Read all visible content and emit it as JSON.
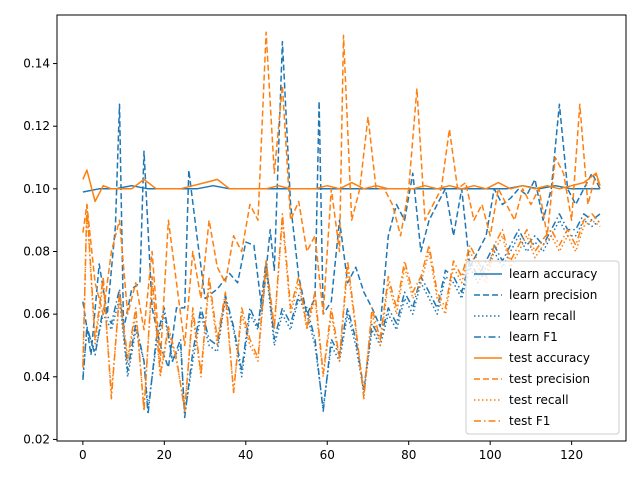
{
  "chart_data": {
    "type": "line",
    "title": "",
    "xlabel": "",
    "ylabel": "",
    "xlim": [
      -6.35,
      133.35
    ],
    "ylim": [
      0.0195,
      0.1555
    ],
    "xticks": [
      0,
      20,
      40,
      60,
      80,
      100,
      120
    ],
    "xtick_labels": [
      "0",
      "20",
      "40",
      "60",
      "80",
      "100",
      "120"
    ],
    "yticks": [
      0.02,
      0.04,
      0.06,
      0.08,
      0.1,
      0.12,
      0.14
    ],
    "ytick_labels": [
      "0.02",
      "0.04",
      "0.06",
      "0.08",
      "0.10",
      "0.12",
      "0.14"
    ],
    "grid": false,
    "legend_position": "lower-right",
    "colors": {
      "learn": "#1f77b4",
      "test": "#ff7f0e"
    },
    "series": [
      {
        "name": "learn accuracy",
        "color": "#1f77b4",
        "dash": "solid",
        "x": [
          0,
          4,
          8,
          12,
          16,
          20,
          24,
          28,
          32,
          36,
          40,
          44,
          48,
          52,
          56,
          60,
          64,
          68,
          72,
          76,
          80,
          84,
          88,
          92,
          96,
          100,
          104,
          108,
          112,
          116,
          120,
          124,
          127
        ],
        "y": [
          0.099,
          0.1,
          0.1,
          0.101,
          0.1,
          0.1,
          0.1,
          0.1,
          0.101,
          0.1,
          0.1,
          0.1,
          0.1,
          0.1,
          0.1,
          0.1,
          0.1,
          0.1,
          0.1,
          0.1,
          0.1,
          0.1,
          0.1,
          0.1,
          0.1,
          0.1,
          0.1,
          0.101,
          0.1,
          0.101,
          0.1,
          0.1,
          0.1
        ]
      },
      {
        "name": "learn precision",
        "color": "#1f77b4",
        "dash": "dashed",
        "x": [
          0,
          2,
          4,
          6,
          8,
          9,
          10,
          12,
          14,
          15,
          17,
          19,
          21,
          23,
          25,
          26,
          28,
          30,
          33,
          36,
          38,
          40,
          42,
          44,
          46,
          47,
          49,
          51,
          53,
          55,
          57,
          58,
          59,
          61,
          63,
          65,
          67,
          69,
          71,
          73,
          75,
          77,
          79,
          81,
          83,
          85,
          87,
          89,
          91,
          93,
          95,
          97,
          99,
          101,
          103,
          105,
          107,
          109,
          111,
          113,
          115,
          117,
          119,
          121,
          123,
          125,
          127
        ],
        "y": [
          0.064,
          0.047,
          0.076,
          0.06,
          0.088,
          0.127,
          0.055,
          0.068,
          0.07,
          0.112,
          0.062,
          0.05,
          0.043,
          0.062,
          0.062,
          0.106,
          0.085,
          0.065,
          0.068,
          0.073,
          0.07,
          0.083,
          0.082,
          0.061,
          0.087,
          0.074,
          0.147,
          0.095,
          0.072,
          0.06,
          0.065,
          0.128,
          0.06,
          0.064,
          0.09,
          0.07,
          0.075,
          0.067,
          0.062,
          0.056,
          0.085,
          0.095,
          0.09,
          0.105,
          0.08,
          0.09,
          0.095,
          0.1,
          0.085,
          0.1,
          0.075,
          0.08,
          0.085,
          0.1,
          0.095,
          0.097,
          0.1,
          0.098,
          0.103,
          0.09,
          0.1,
          0.127,
          0.1,
          0.095,
          0.1,
          0.105,
          0.1
        ]
      },
      {
        "name": "learn recall",
        "color": "#1f77b4",
        "dash": "dotted",
        "x": [
          0,
          1,
          3,
          5,
          7,
          9,
          11,
          13,
          15,
          16,
          18,
          20,
          22,
          24,
          25,
          27,
          29,
          31,
          33,
          35,
          37,
          39,
          41,
          43,
          45,
          47,
          49,
          51,
          53,
          55,
          57,
          59,
          61,
          63,
          65,
          67,
          69,
          71,
          73,
          75,
          77,
          79,
          81,
          83,
          85,
          87,
          89,
          91,
          93,
          95,
          97,
          99,
          101,
          103,
          105,
          107,
          109,
          111,
          113,
          115,
          117,
          119,
          121,
          123,
          125,
          127
        ],
        "y": [
          0.04,
          0.055,
          0.048,
          0.06,
          0.055,
          0.065,
          0.04,
          0.055,
          0.045,
          0.03,
          0.05,
          0.06,
          0.045,
          0.05,
          0.028,
          0.045,
          0.06,
          0.05,
          0.048,
          0.065,
          0.055,
          0.04,
          0.06,
          0.055,
          0.075,
          0.05,
          0.06,
          0.055,
          0.065,
          0.06,
          0.05,
          0.03,
          0.05,
          0.045,
          0.06,
          0.05,
          0.035,
          0.055,
          0.05,
          0.06,
          0.055,
          0.065,
          0.06,
          0.07,
          0.065,
          0.06,
          0.072,
          0.07,
          0.065,
          0.075,
          0.07,
          0.075,
          0.08,
          0.075,
          0.08,
          0.085,
          0.08,
          0.083,
          0.08,
          0.085,
          0.09,
          0.085,
          0.085,
          0.09,
          0.088,
          0.09
        ]
      },
      {
        "name": "learn F1",
        "color": "#1f77b4",
        "dash": "dashdot",
        "x": [
          0,
          1,
          3,
          5,
          7,
          9,
          11,
          13,
          15,
          16,
          18,
          20,
          22,
          24,
          25,
          27,
          29,
          31,
          33,
          35,
          37,
          39,
          41,
          43,
          45,
          47,
          49,
          51,
          53,
          55,
          57,
          59,
          61,
          63,
          65,
          67,
          69,
          71,
          73,
          75,
          77,
          79,
          81,
          83,
          85,
          87,
          89,
          91,
          93,
          95,
          97,
          99,
          101,
          103,
          105,
          107,
          109,
          111,
          113,
          115,
          117,
          119,
          121,
          123,
          125,
          127
        ],
        "y": [
          0.039,
          0.056,
          0.047,
          0.062,
          0.057,
          0.068,
          0.042,
          0.057,
          0.045,
          0.028,
          0.052,
          0.062,
          0.045,
          0.052,
          0.027,
          0.048,
          0.062,
          0.052,
          0.05,
          0.066,
          0.056,
          0.042,
          0.062,
          0.056,
          0.077,
          0.052,
          0.062,
          0.057,
          0.066,
          0.062,
          0.052,
          0.029,
          0.052,
          0.047,
          0.062,
          0.052,
          0.036,
          0.057,
          0.052,
          0.062,
          0.057,
          0.067,
          0.062,
          0.072,
          0.067,
          0.062,
          0.074,
          0.072,
          0.067,
          0.077,
          0.072,
          0.077,
          0.082,
          0.077,
          0.082,
          0.087,
          0.082,
          0.085,
          0.082,
          0.087,
          0.092,
          0.087,
          0.087,
          0.092,
          0.09,
          0.092
        ]
      },
      {
        "name": "test accuracy",
        "color": "#ff7f0e",
        "dash": "solid",
        "x": [
          0,
          1,
          3,
          5,
          7,
          9,
          12,
          15,
          18,
          21,
          24,
          27,
          30,
          33,
          36,
          39,
          42,
          45,
          48,
          51,
          54,
          57,
          60,
          63,
          66,
          69,
          72,
          75,
          78,
          81,
          84,
          87,
          90,
          93,
          96,
          99,
          102,
          105,
          108,
          111,
          114,
          117,
          120,
          123,
          126,
          127
        ],
        "y": [
          0.103,
          0.106,
          0.096,
          0.101,
          0.1,
          0.1,
          0.1,
          0.103,
          0.1,
          0.1,
          0.1,
          0.101,
          0.102,
          0.103,
          0.1,
          0.1,
          0.1,
          0.1,
          0.101,
          0.1,
          0.1,
          0.1,
          0.101,
          0.1,
          0.102,
          0.1,
          0.101,
          0.1,
          0.1,
          0.1,
          0.101,
          0.1,
          0.101,
          0.1,
          0.101,
          0.1,
          0.102,
          0.1,
          0.101,
          0.1,
          0.101,
          0.1,
          0.101,
          0.102,
          0.105,
          0.101
        ]
      },
      {
        "name": "test precision",
        "color": "#ff7f0e",
        "dash": "dashed",
        "x": [
          0,
          1,
          3,
          5,
          7,
          9,
          11,
          13,
          15,
          17,
          19,
          21,
          23,
          25,
          27,
          29,
          31,
          33,
          35,
          37,
          39,
          41,
          43,
          45,
          47,
          49,
          51,
          53,
          55,
          57,
          59,
          61,
          63,
          64,
          66,
          68,
          70,
          72,
          74,
          76,
          78,
          80,
          82,
          84,
          86,
          88,
          90,
          92,
          94,
          96,
          98,
          100,
          102,
          104,
          106,
          108,
          110,
          112,
          114,
          116,
          118,
          120,
          122,
          124,
          126,
          127
        ],
        "y": [
          0.086,
          0.095,
          0.07,
          0.06,
          0.08,
          0.09,
          0.06,
          0.07,
          0.055,
          0.08,
          0.045,
          0.09,
          0.07,
          0.05,
          0.08,
          0.065,
          0.09,
          0.075,
          0.07,
          0.085,
          0.08,
          0.095,
          0.09,
          0.15,
          0.105,
          0.133,
          0.09,
          0.096,
          0.08,
          0.085,
          0.06,
          0.1,
          0.08,
          0.149,
          0.09,
          0.1,
          0.123,
          0.1,
          0.1,
          0.095,
          0.085,
          0.1,
          0.132,
          0.09,
          0.095,
          0.1,
          0.119,
          0.1,
          0.102,
          0.09,
          0.095,
          0.085,
          0.1,
          0.095,
          0.09,
          0.1,
          0.095,
          0.1,
          0.085,
          0.11,
          0.105,
          0.09,
          0.127,
          0.095,
          0.105,
          0.1
        ]
      },
      {
        "name": "test recall",
        "color": "#ff7f0e",
        "dash": "dotted",
        "x": [
          0,
          1,
          3,
          5,
          7,
          9,
          11,
          13,
          15,
          17,
          19,
          21,
          23,
          25,
          27,
          29,
          31,
          33,
          35,
          37,
          39,
          41,
          43,
          45,
          47,
          49,
          51,
          53,
          55,
          57,
          59,
          61,
          63,
          65,
          67,
          69,
          71,
          73,
          75,
          77,
          79,
          81,
          83,
          85,
          87,
          89,
          91,
          93,
          95,
          97,
          99,
          101,
          103,
          105,
          107,
          109,
          111,
          113,
          115,
          117,
          119,
          121,
          123,
          125,
          127
        ],
        "y": [
          0.044,
          0.094,
          0.05,
          0.07,
          0.035,
          0.065,
          0.045,
          0.06,
          0.03,
          0.07,
          0.04,
          0.055,
          0.045,
          0.03,
          0.06,
          0.04,
          0.07,
          0.05,
          0.065,
          0.035,
          0.06,
          0.05,
          0.045,
          0.075,
          0.055,
          0.09,
          0.06,
          0.07,
          0.055,
          0.065,
          0.04,
          0.06,
          0.045,
          0.075,
          0.055,
          0.035,
          0.06,
          0.05,
          0.07,
          0.06,
          0.075,
          0.065,
          0.07,
          0.08,
          0.065,
          0.06,
          0.075,
          0.07,
          0.08,
          0.075,
          0.07,
          0.08,
          0.085,
          0.075,
          0.08,
          0.085,
          0.078,
          0.082,
          0.085,
          0.08,
          0.085,
          0.08,
          0.088,
          0.09,
          0.088
        ]
      },
      {
        "name": "test F1",
        "color": "#ff7f0e",
        "dash": "dashdot",
        "x": [
          0,
          1,
          3,
          5,
          7,
          9,
          11,
          13,
          15,
          17,
          19,
          21,
          23,
          25,
          27,
          29,
          31,
          33,
          35,
          37,
          39,
          41,
          43,
          45,
          47,
          49,
          51,
          53,
          55,
          57,
          59,
          61,
          63,
          65,
          67,
          69,
          71,
          73,
          75,
          77,
          79,
          81,
          83,
          85,
          87,
          89,
          91,
          93,
          95,
          97,
          99,
          101,
          103,
          105,
          107,
          109,
          111,
          113,
          115,
          117,
          119,
          121,
          123,
          125,
          127
        ],
        "y": [
          0.043,
          0.095,
          0.052,
          0.072,
          0.033,
          0.067,
          0.046,
          0.062,
          0.029,
          0.072,
          0.041,
          0.056,
          0.046,
          0.029,
          0.062,
          0.041,
          0.072,
          0.052,
          0.067,
          0.035,
          0.062,
          0.052,
          0.046,
          0.077,
          0.056,
          0.092,
          0.062,
          0.072,
          0.056,
          0.067,
          0.041,
          0.062,
          0.046,
          0.077,
          0.056,
          0.033,
          0.062,
          0.052,
          0.072,
          0.062,
          0.077,
          0.067,
          0.072,
          0.082,
          0.067,
          0.062,
          0.077,
          0.072,
          0.082,
          0.077,
          0.072,
          0.082,
          0.087,
          0.077,
          0.082,
          0.087,
          0.08,
          0.084,
          0.087,
          0.082,
          0.087,
          0.082,
          0.09,
          0.092,
          0.089
        ]
      }
    ]
  }
}
